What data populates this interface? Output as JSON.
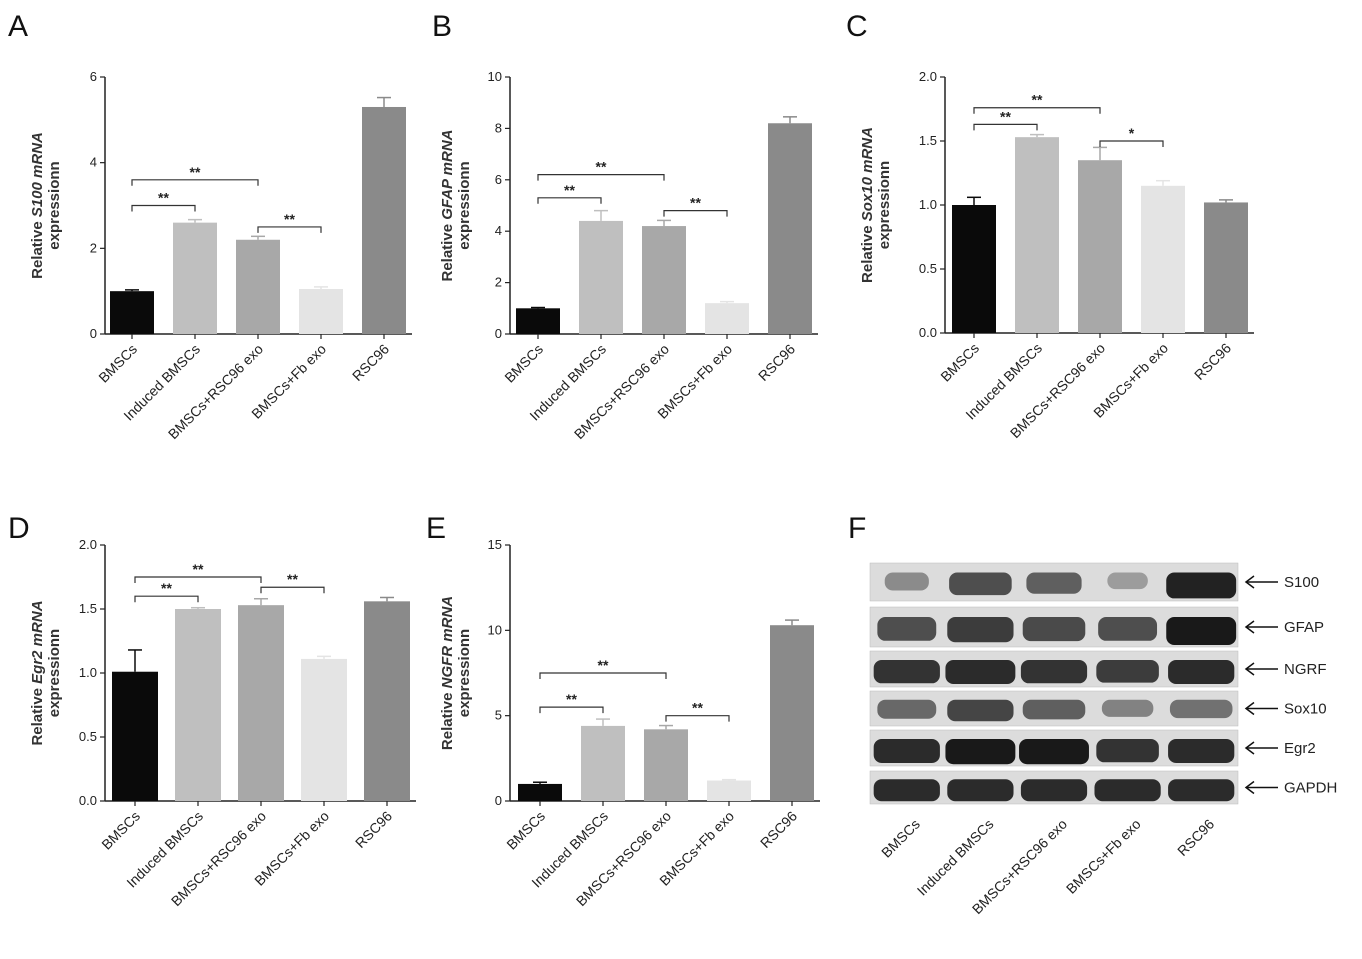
{
  "panels": [
    {
      "letter": "A",
      "chart_data": {
        "type": "bar",
        "categories": [
          "BMSCs",
          "Induced BMSCs",
          "BMSCs+RSC96 exo",
          "BMSCs+Fb exo",
          "RSC96"
        ],
        "values": [
          1.0,
          2.6,
          2.2,
          1.05,
          5.3
        ],
        "errors": [
          0.03,
          0.07,
          0.08,
          0.05,
          0.22
        ],
        "ylim": [
          0,
          6
        ],
        "yticks": [
          0,
          2,
          4,
          6
        ],
        "ylabel_pre": "Relative ",
        "ylabel_gene": "S100 mRNA",
        "ylabel_line2": "expressionn",
        "colors": [
          "#0a0a0a",
          "#bfbfbf",
          "#a8a8a8",
          "#e4e4e4",
          "#8a8a8a"
        ],
        "significance": [
          {
            "from": 0,
            "to": 1,
            "label": "**",
            "y": 3.0
          },
          {
            "from": 0,
            "to": 2,
            "label": "**",
            "y": 3.6
          },
          {
            "from": 2,
            "to": 3,
            "label": "**",
            "y": 2.5
          }
        ]
      }
    },
    {
      "letter": "B",
      "chart_data": {
        "type": "bar",
        "categories": [
          "BMSCs",
          "Induced BMSCs",
          "BMSCs+RSC96 exo",
          "BMSCs+Fb exo",
          "RSC96"
        ],
        "values": [
          1.0,
          4.4,
          4.2,
          1.2,
          8.2
        ],
        "errors": [
          0.03,
          0.4,
          0.22,
          0.06,
          0.25
        ],
        "ylim": [
          0,
          10
        ],
        "yticks": [
          0,
          2,
          4,
          6,
          8,
          10
        ],
        "ylabel_pre": "Relative ",
        "ylabel_gene": "GFAP mRNA",
        "ylabel_line2": "expressionn",
        "colors": [
          "#0a0a0a",
          "#bfbfbf",
          "#a8a8a8",
          "#e4e4e4",
          "#8a8a8a"
        ],
        "significance": [
          {
            "from": 0,
            "to": 1,
            "label": "**",
            "y": 5.3
          },
          {
            "from": 0,
            "to": 2,
            "label": "**",
            "y": 6.2
          },
          {
            "from": 2,
            "to": 3,
            "label": "**",
            "y": 4.8
          }
        ]
      }
    },
    {
      "letter": "C",
      "chart_data": {
        "type": "bar",
        "categories": [
          "BMSCs",
          "Induced BMSCs",
          "BMSCs+RSC96 exo",
          "BMSCs+Fb exo",
          "RSC96"
        ],
        "values": [
          1.0,
          1.53,
          1.35,
          1.15,
          1.02
        ],
        "errors": [
          0.06,
          0.02,
          0.1,
          0.04,
          0.02
        ],
        "ylim": [
          0,
          2.0
        ],
        "yticks": [
          0.0,
          0.5,
          1.0,
          1.5,
          2.0
        ],
        "ylabel_pre": "Relative ",
        "ylabel_gene": "Sox10 mRNA",
        "ylabel_line2": "expressionn",
        "colors": [
          "#0a0a0a",
          "#bfbfbf",
          "#a8a8a8",
          "#e4e4e4",
          "#8a8a8a"
        ],
        "significance": [
          {
            "from": 0,
            "to": 1,
            "label": "**",
            "y": 1.63
          },
          {
            "from": 0,
            "to": 2,
            "label": "**",
            "y": 1.76
          },
          {
            "from": 2,
            "to": 3,
            "label": "*",
            "y": 1.5
          }
        ]
      }
    },
    {
      "letter": "D",
      "chart_data": {
        "type": "bar",
        "categories": [
          "BMSCs",
          "Induced BMSCs",
          "BMSCs+RSC96 exo",
          "BMSCs+Fb exo",
          "RSC96"
        ],
        "values": [
          1.01,
          1.5,
          1.53,
          1.11,
          1.56
        ],
        "errors": [
          0.17,
          0.01,
          0.05,
          0.02,
          0.03
        ],
        "ylim": [
          0,
          2.0
        ],
        "yticks": [
          0.0,
          0.5,
          1.0,
          1.5,
          2.0
        ],
        "ylabel_pre": "Relative ",
        "ylabel_gene": "Egr2 mRNA",
        "ylabel_line2": "expressionn",
        "colors": [
          "#0a0a0a",
          "#bfbfbf",
          "#a8a8a8",
          "#e4e4e4",
          "#8a8a8a"
        ],
        "significance": [
          {
            "from": 0,
            "to": 1,
            "label": "**",
            "y": 1.6
          },
          {
            "from": 0,
            "to": 2,
            "label": "**",
            "y": 1.75
          },
          {
            "from": 2,
            "to": 3,
            "label": "**",
            "y": 1.67
          }
        ]
      }
    },
    {
      "letter": "E",
      "chart_data": {
        "type": "bar",
        "categories": [
          "BMSCs",
          "Induced BMSCs",
          "BMSCs+RSC96 exo",
          "BMSCs+Fb exo",
          "RSC96"
        ],
        "values": [
          1.0,
          4.4,
          4.2,
          1.2,
          10.3
        ],
        "errors": [
          0.1,
          0.4,
          0.22,
          0.05,
          0.3
        ],
        "ylim": [
          0,
          15
        ],
        "yticks": [
          0,
          5,
          10,
          15
        ],
        "ylabel_pre": "Relative ",
        "ylabel_gene": "NGFR mRNA",
        "ylabel_line2": "expressionn",
        "colors": [
          "#0a0a0a",
          "#bfbfbf",
          "#a8a8a8",
          "#e4e4e4",
          "#8a8a8a"
        ],
        "significance": [
          {
            "from": 0,
            "to": 1,
            "label": "**",
            "y": 5.5
          },
          {
            "from": 0,
            "to": 2,
            "label": "**",
            "y": 7.5
          },
          {
            "from": 2,
            "to": 3,
            "label": "**",
            "y": 5.0
          }
        ]
      }
    }
  ],
  "blot": {
    "letter": "F",
    "lanes": [
      "BMSCs",
      "Induced BMSCs",
      "BMSCs+RSC96 exo",
      "BMSCs+Fb exo",
      "RSC96"
    ],
    "rows": [
      {
        "label": "S100",
        "intensity": [
          0.35,
          0.7,
          0.6,
          0.25,
          0.95
        ],
        "width": [
          0.6,
          0.85,
          0.75,
          0.55,
          0.95
        ]
      },
      {
        "label": "GFAP",
        "intensity": [
          0.7,
          0.8,
          0.72,
          0.7,
          1.0
        ],
        "width": [
          0.8,
          0.9,
          0.85,
          0.8,
          0.95
        ]
      },
      {
        "label": "NGRF",
        "intensity": [
          0.85,
          0.9,
          0.85,
          0.8,
          0.9
        ],
        "width": [
          0.9,
          0.95,
          0.9,
          0.85,
          0.9
        ]
      },
      {
        "label": "Sox10",
        "intensity": [
          0.55,
          0.75,
          0.6,
          0.4,
          0.5
        ],
        "width": [
          0.8,
          0.9,
          0.85,
          0.7,
          0.85
        ]
      },
      {
        "label": "Egr2",
        "intensity": [
          0.9,
          1.0,
          1.0,
          0.85,
          0.9
        ],
        "width": [
          0.9,
          0.95,
          0.95,
          0.85,
          0.9
        ]
      },
      {
        "label": "GAPDH",
        "intensity": [
          0.9,
          0.9,
          0.9,
          0.9,
          0.9
        ],
        "width": [
          0.9,
          0.9,
          0.9,
          0.9,
          0.9
        ]
      }
    ]
  }
}
